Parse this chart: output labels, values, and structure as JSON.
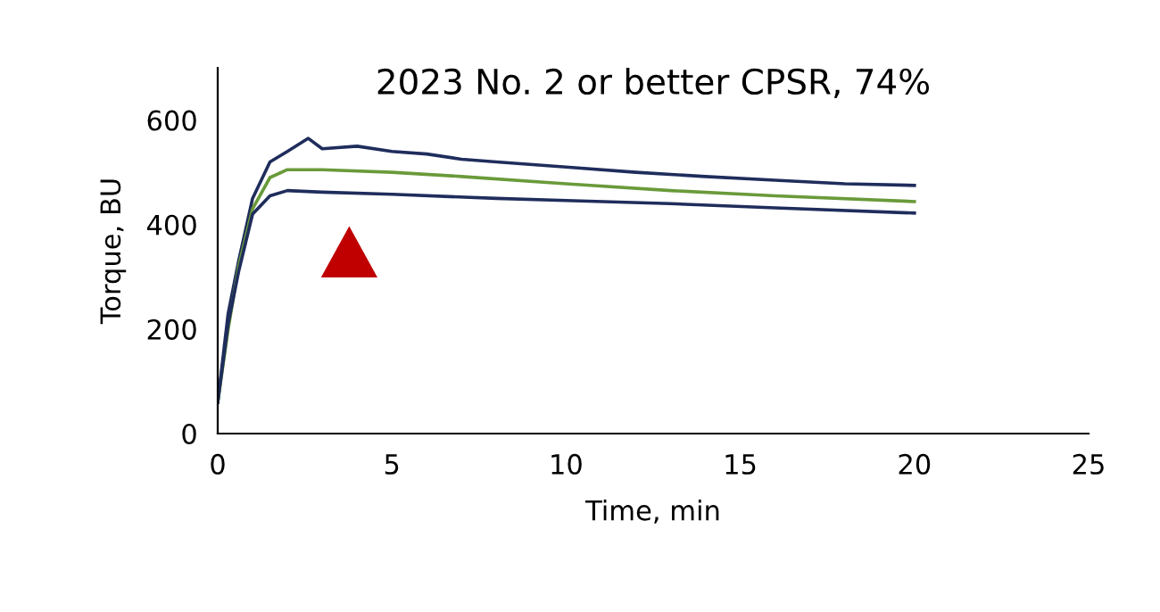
{
  "chart_data": {
    "type": "line",
    "title": "2023 No. 2 or better CPSR, 74%",
    "xlabel": "Time, min",
    "ylabel": "Torque, BU",
    "xlim": [
      0,
      25
    ],
    "xticks": [
      0,
      5,
      10,
      15,
      20,
      25
    ],
    "ylim": [
      0,
      700
    ],
    "yticks": [
      0,
      200,
      400,
      600
    ],
    "grid": false,
    "legend": false,
    "line_style": "solid",
    "marker": "none",
    "series": [
      {
        "color": "#1f2d5c",
        "x": [
          0,
          0.3,
          0.6,
          1,
          1.5,
          2,
          2.6,
          3,
          4,
          5,
          6,
          7,
          8,
          10,
          12,
          14,
          16,
          18,
          20
        ],
        "values": [
          60,
          230,
          330,
          450,
          520,
          540,
          565,
          545,
          550,
          540,
          535,
          525,
          520,
          510,
          500,
          492,
          485,
          478,
          475
        ]
      },
      {
        "color": "#6a9a3a",
        "x": [
          0,
          0.3,
          0.6,
          1,
          1.5,
          2,
          3,
          5,
          7,
          10,
          13,
          16,
          20
        ],
        "values": [
          60,
          200,
          320,
          430,
          490,
          505,
          505,
          500,
          492,
          478,
          465,
          455,
          444
        ]
      },
      {
        "color": "#1f2d5c",
        "x": [
          0,
          0.3,
          0.6,
          1,
          1.5,
          2,
          3,
          5,
          8,
          10,
          13,
          16,
          20
        ],
        "values": [
          60,
          210,
          310,
          420,
          455,
          465,
          462,
          458,
          450,
          446,
          440,
          432,
          422
        ]
      }
    ]
  }
}
